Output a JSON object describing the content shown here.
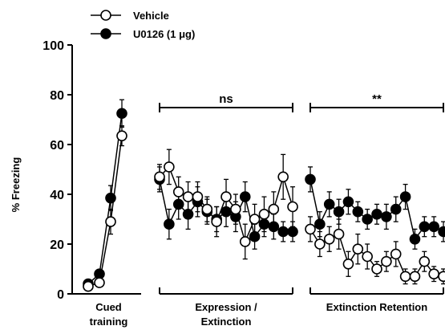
{
  "chart_data": {
    "type": "line",
    "ylabel": "% Freezing",
    "ylim": [
      0,
      100
    ],
    "yticks": [
      0,
      20,
      40,
      60,
      80,
      100
    ],
    "legend": {
      "placement": "top-left",
      "items": [
        {
          "series": "vehicle",
          "label": "Vehicle"
        },
        {
          "series": "u0126",
          "label": "U0126 (1 μg)"
        }
      ]
    },
    "groups": [
      {
        "label_lines": [
          "Cued",
          "training"
        ],
        "points": 4
      },
      {
        "label_lines": [
          "Expression /",
          "Extinction"
        ],
        "points": 15
      },
      {
        "label_lines": [
          "Extinction Retention"
        ],
        "points": 15
      }
    ],
    "annotations": [
      {
        "group": 1,
        "text": "ns"
      },
      {
        "group": 2,
        "text": "**"
      }
    ],
    "series": [
      {
        "key": "vehicle",
        "name": "Vehicle",
        "marker": "open-circle",
        "color": "#000000",
        "groups": [
          {
            "y": [
              3,
              4.5,
              29,
              63.5
            ],
            "err": [
              1.5,
              1.5,
              5,
              4
            ]
          },
          {
            "y": [
              47,
              51,
              41,
              39,
              39,
              34,
              29,
              39,
              34,
              21,
              30,
              32,
              34,
              47,
              35
            ],
            "err": [
              5,
              7,
              6,
              6,
              6,
              5,
              6,
              7,
              6,
              7,
              6,
              7,
              7,
              9,
              8
            ]
          },
          {
            "y": [
              26,
              20,
              22,
              24,
              12,
              18,
              15,
              10,
              13,
              16,
              7,
              7,
              13,
              8,
              7
            ],
            "err": [
              5,
              5,
              5,
              6,
              5,
              6,
              5,
              3,
              4,
              5,
              3,
              3,
              4,
              3,
              3
            ]
          }
        ]
      },
      {
        "key": "u0126",
        "name": "U0126 (1 μg)",
        "marker": "filled-circle",
        "color": "#000000",
        "groups": [
          {
            "y": [
              4,
              8,
              38.5,
              72.5
            ],
            "err": [
              1.5,
              1.5,
              5,
              5.5
            ]
          },
          {
            "y": [
              46,
              28,
              36,
              32,
              37,
              33,
              30,
              33,
              31,
              39,
              23,
              28,
              27,
              25,
              25
            ],
            "err": [
              5,
              6,
              6,
              6,
              6,
              5,
              5,
              6,
              6,
              6,
              5,
              5,
              5,
              4,
              4
            ]
          },
          {
            "y": [
              46,
              28,
              36,
              33,
              37,
              33,
              30,
              32,
              31,
              34,
              39,
              22,
              27,
              27,
              25
            ],
            "err": [
              5,
              5,
              5,
              5,
              5,
              4,
              4,
              4,
              5,
              5,
              5,
              4,
              4,
              4,
              4
            ]
          }
        ]
      }
    ]
  }
}
